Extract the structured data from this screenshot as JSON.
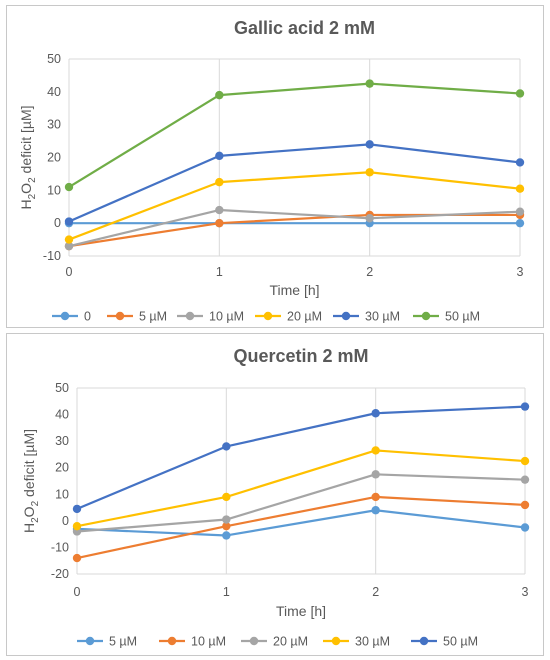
{
  "chart_data": [
    {
      "type": "line",
      "title": "Gallic acid 2 mM",
      "xlabel": "Time [h]",
      "ylabel_parts": [
        "H",
        "2",
        "O",
        "2",
        " deficit [µM]"
      ],
      "x": [
        0,
        1,
        2,
        3
      ],
      "xticks": [
        "0",
        "1",
        "2",
        "3"
      ],
      "ylim": [
        -10,
        50
      ],
      "yticks": [
        -10,
        0,
        10,
        20,
        30,
        40,
        50
      ],
      "grid": "vertical",
      "legend": "bottom",
      "series": [
        {
          "name": "0",
          "color": "#5b9bd5",
          "values": [
            0,
            0,
            0,
            0
          ]
        },
        {
          "name": "5 µM",
          "color": "#ed7d31",
          "values": [
            -7,
            0,
            2.5,
            2.5
          ]
        },
        {
          "name": "10 µM",
          "color": "#a5a5a5",
          "values": [
            -7,
            4,
            1.5,
            3.5
          ]
        },
        {
          "name": "20 µM",
          "color": "#ffc000",
          "values": [
            -5,
            12.5,
            15.5,
            10.5
          ]
        },
        {
          "name": "30 µM",
          "color": "#4472c4",
          "values": [
            0.5,
            20.5,
            24,
            18.5
          ]
        },
        {
          "name": "50 µM",
          "color": "#70ad47",
          "values": [
            11,
            39,
            42.5,
            39.5
          ]
        }
      ]
    },
    {
      "type": "line",
      "title": "Quercetin 2 mM",
      "xlabel": "Time [h]",
      "ylabel_parts": [
        "H",
        "2",
        "O",
        "2",
        " deficit [µM]"
      ],
      "x": [
        0,
        1,
        2,
        3
      ],
      "xticks": [
        "0",
        "1",
        "2",
        "3"
      ],
      "ylim": [
        -20,
        50
      ],
      "yticks": [
        -20,
        -10,
        0,
        10,
        20,
        30,
        40,
        50
      ],
      "grid": "vertical",
      "legend": "bottom",
      "series": [
        {
          "name": "5 µM",
          "color": "#5b9bd5",
          "values": [
            -3,
            -5.5,
            4,
            -2.5
          ]
        },
        {
          "name": "10 µM",
          "color": "#ed7d31",
          "values": [
            -14,
            -2,
            9,
            6
          ]
        },
        {
          "name": "20 µM",
          "color": "#a5a5a5",
          "values": [
            -4,
            0.5,
            17.5,
            15.5
          ]
        },
        {
          "name": "30 µM",
          "color": "#ffc000",
          "values": [
            -2,
            9,
            26.5,
            22.5
          ]
        },
        {
          "name": "50 µM",
          "color": "#4472c4",
          "values": [
            4.5,
            28,
            40.5,
            43
          ]
        }
      ]
    }
  ]
}
